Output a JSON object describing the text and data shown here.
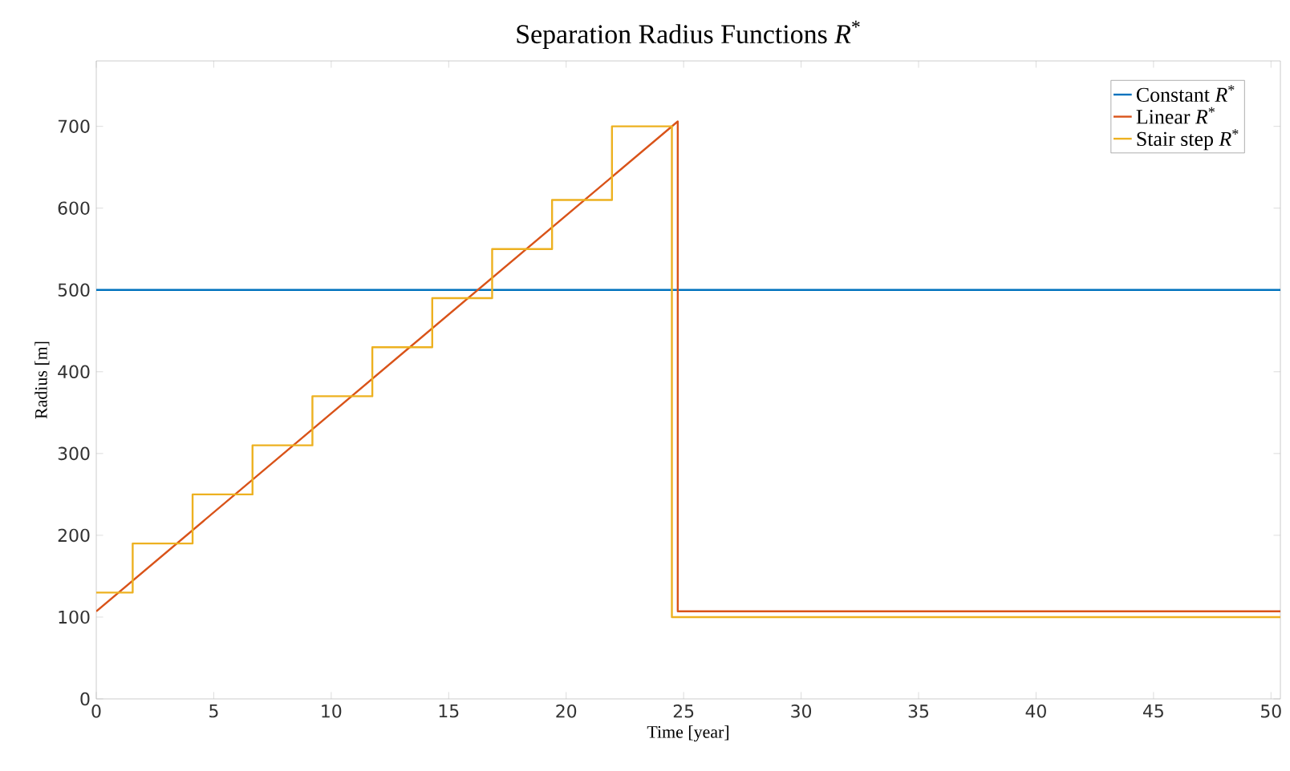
{
  "chart_data": {
    "type": "line",
    "title": "Separation Radius Functions *R*$^{*}$",
    "xlabel": "Time [year]",
    "ylabel": "Radius [m]",
    "xlim": [
      0,
      50.4
    ],
    "ylim": [
      0,
      780
    ],
    "xticks": [
      0,
      5,
      10,
      15,
      20,
      25,
      30,
      35,
      40,
      45,
      50
    ],
    "yticks": [
      0,
      100,
      200,
      300,
      400,
      500,
      600,
      700
    ],
    "legend": "top right",
    "line_style": "solid",
    "series": [
      {
        "name": "Constant *R*$^{*}$",
        "color": "#0072bd",
        "x": [
          0,
          50.4
        ],
        "values": [
          500,
          500
        ]
      },
      {
        "name": "Linear *R*$^{*}$",
        "color": "#d95319",
        "x": [
          0,
          24.75,
          24.75,
          50.4
        ],
        "values": [
          107,
          706,
          107,
          107
        ]
      },
      {
        "name": "Stair step *R*$^{*}$",
        "type": "step",
        "color": "#edb120",
        "x": [
          0,
          1.55,
          4.1,
          6.65,
          9.2,
          11.75,
          14.3,
          16.85,
          19.4,
          21.95,
          24.5,
          50.4
        ],
        "values": [
          130,
          190,
          250,
          310,
          370,
          430,
          490,
          550,
          610,
          700,
          100,
          100
        ]
      }
    ]
  }
}
